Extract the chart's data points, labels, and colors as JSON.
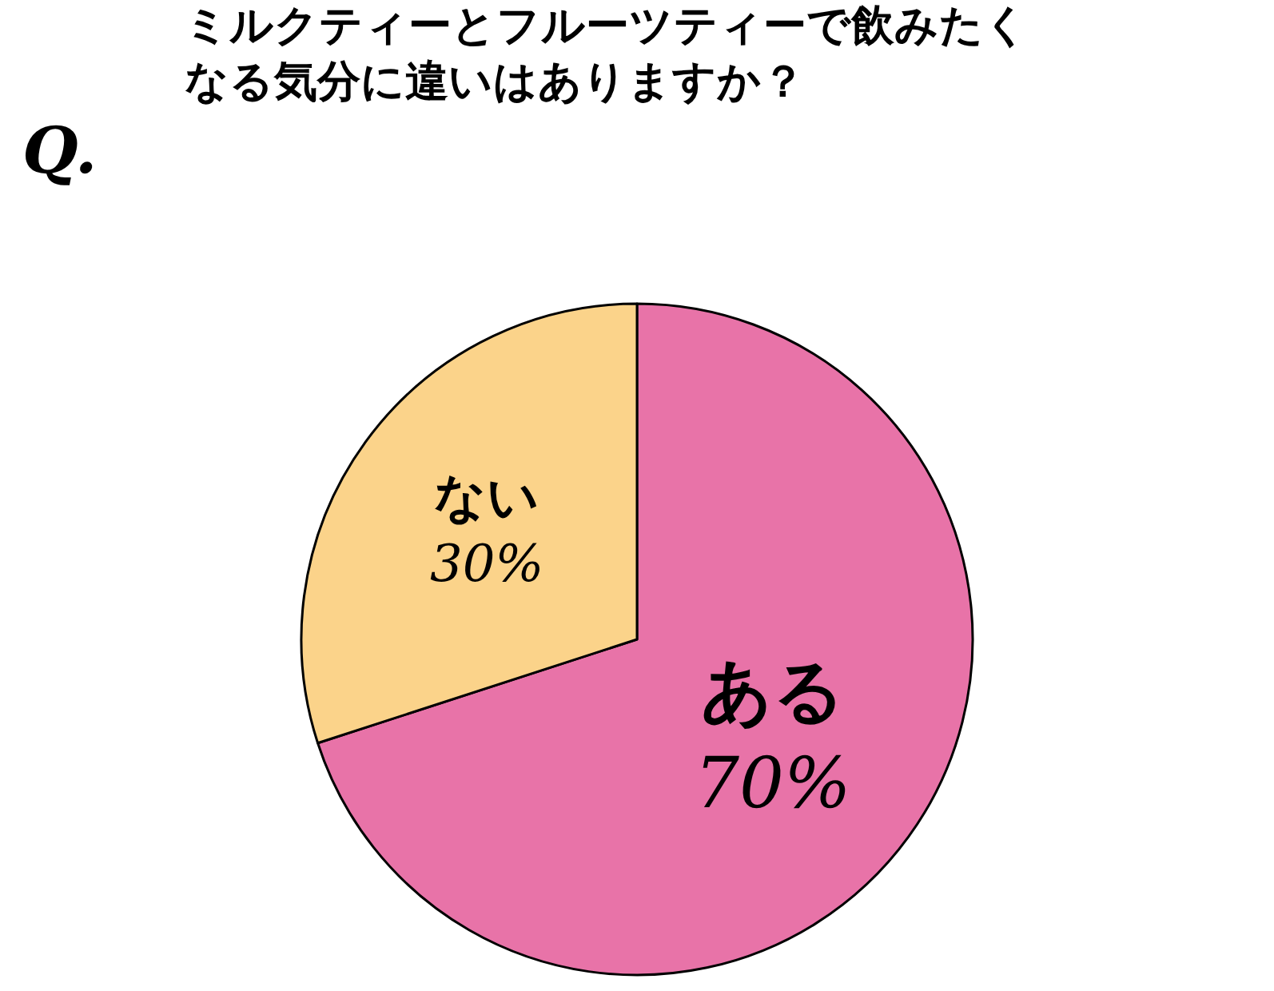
{
  "chart_data": {
    "type": "pie",
    "title": "ミルクティーとフルーツティーで飲みたくなる気分に違いはありますか？",
    "annotations": [
      "Q."
    ],
    "categories": [
      "ある",
      "ない"
    ],
    "values": [
      70,
      30
    ],
    "colors": [
      "#e873a8",
      "#fbd38a"
    ],
    "value_labels": [
      "70%",
      "30%"
    ],
    "legend": false
  }
}
